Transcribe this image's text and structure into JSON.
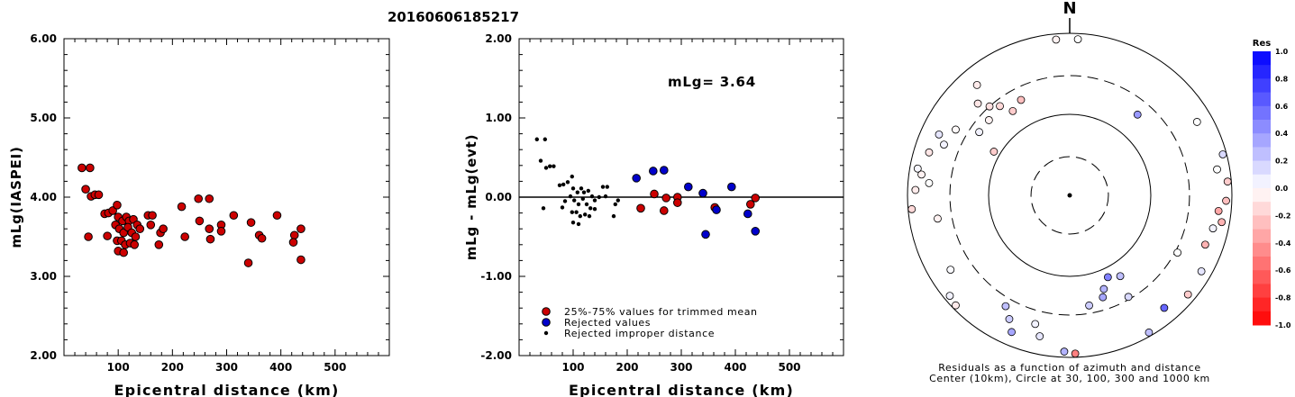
{
  "title": "20160606185217",
  "chart_data": [
    {
      "type": "scatter",
      "xlabel": "Epicentral distance (km)",
      "ylabel": "mLg(IASPEI)",
      "xlim": [
        0,
        600
      ],
      "ylim": [
        2.0,
        6.0
      ],
      "xticks": [
        "100",
        "200",
        "300",
        "400",
        "500"
      ],
      "yticks": [
        "2.00",
        "3.00",
        "4.00",
        "5.00",
        "6.00"
      ],
      "series": [
        {
          "color": "#cc0000",
          "points": [
            [
              33,
              4.37
            ],
            [
              48,
              4.37
            ],
            [
              40,
              4.1
            ],
            [
              50,
              4.01
            ],
            [
              57,
              4.03
            ],
            [
              64,
              4.03
            ],
            [
              45,
              3.5
            ],
            [
              75,
              3.79
            ],
            [
              82,
              3.8
            ],
            [
              90,
              3.83
            ],
            [
              98,
              3.9
            ],
            [
              100,
              3.75
            ],
            [
              108,
              3.7
            ],
            [
              115,
              3.75
            ],
            [
              120,
              3.7
            ],
            [
              128,
              3.72
            ],
            [
              135,
              3.65
            ],
            [
              140,
              3.6
            ],
            [
              155,
              3.77
            ],
            [
              163,
              3.77
            ],
            [
              80,
              3.51
            ],
            [
              95,
              3.65
            ],
            [
              102,
              3.6
            ],
            [
              110,
              3.55
            ],
            [
              118,
              3.62
            ],
            [
              125,
              3.55
            ],
            [
              132,
              3.5
            ],
            [
              98,
              3.45
            ],
            [
              106,
              3.45
            ],
            [
              113,
              3.4
            ],
            [
              122,
              3.42
            ],
            [
              130,
              3.4
            ],
            [
              100,
              3.32
            ],
            [
              110,
              3.3
            ],
            [
              175,
              3.4
            ],
            [
              178,
              3.55
            ],
            [
              183,
              3.6
            ],
            [
              160,
              3.65
            ],
            [
              217,
              3.88
            ],
            [
              248,
              3.98
            ],
            [
              268,
              3.98
            ],
            [
              250,
              3.7
            ],
            [
              268,
              3.6
            ],
            [
              290,
              3.65
            ],
            [
              290,
              3.57
            ],
            [
              313,
              3.77
            ],
            [
              223,
              3.5
            ],
            [
              270,
              3.47
            ],
            [
              345,
              3.68
            ],
            [
              360,
              3.52
            ],
            [
              365,
              3.48
            ],
            [
              393,
              3.77
            ],
            [
              425,
              3.52
            ],
            [
              437,
              3.6
            ],
            [
              423,
              3.43
            ],
            [
              437,
              3.21
            ],
            [
              340,
              3.17
            ]
          ]
        }
      ]
    },
    {
      "type": "scatter",
      "xlabel": "Epicentral distance (km)",
      "ylabel": "mLg - mLg(evt)",
      "xlim": [
        0,
        600
      ],
      "ylim": [
        -2.0,
        2.0
      ],
      "xticks": [
        "100",
        "200",
        "300",
        "400",
        "500"
      ],
      "yticks": [
        "-2.00",
        "-1.00",
        "0.00",
        "1.00",
        "2.00"
      ],
      "annotation": "mLg= 3.64",
      "legend": [
        {
          "label": "25%-75% values for trimmed mean",
          "color": "#cc0000",
          "marker": "circle"
        },
        {
          "label": "Rejected values",
          "color": "#0000cc",
          "marker": "circle"
        },
        {
          "label": "Rejected improper distance",
          "color": "#000000",
          "marker": "dot"
        }
      ],
      "series": [
        {
          "name": "25%-75% values for trimmed mean",
          "color": "#cc0000",
          "points": [
            [
              225,
              -0.14
            ],
            [
              250,
              0.04
            ],
            [
              268,
              -0.17
            ],
            [
              272,
              -0.01
            ],
            [
              293,
              0.0
            ],
            [
              293,
              -0.07
            ],
            [
              362,
              -0.13
            ],
            [
              437,
              -0.01
            ],
            [
              428,
              -0.09
            ]
          ]
        },
        {
          "name": "Rejected values",
          "color": "#0000cc",
          "points": [
            [
              217,
              0.24
            ],
            [
              248,
              0.33
            ],
            [
              268,
              0.34
            ],
            [
              313,
              0.13
            ],
            [
              340,
              0.05
            ],
            [
              345,
              -0.47
            ],
            [
              365,
              -0.16
            ],
            [
              393,
              0.13
            ],
            [
              423,
              -0.21
            ],
            [
              437,
              -0.43
            ]
          ]
        },
        {
          "name": "Rejected improper distance",
          "color": "#000000",
          "points": [
            [
              33,
              0.73
            ],
            [
              48,
              0.73
            ],
            [
              40,
              0.46
            ],
            [
              50,
              0.37
            ],
            [
              57,
              0.39
            ],
            [
              64,
              0.39
            ],
            [
              45,
              -0.14
            ],
            [
              75,
              0.15
            ],
            [
              82,
              0.16
            ],
            [
              90,
              0.19
            ],
            [
              98,
              0.26
            ],
            [
              100,
              0.11
            ],
            [
              108,
              0.06
            ],
            [
              115,
              0.11
            ],
            [
              120,
              0.06
            ],
            [
              128,
              0.08
            ],
            [
              135,
              0.01
            ],
            [
              140,
              -0.04
            ],
            [
              155,
              0.13
            ],
            [
              163,
              0.13
            ],
            [
              80,
              -0.13
            ],
            [
              95,
              0.01
            ],
            [
              102,
              -0.04
            ],
            [
              110,
              -0.09
            ],
            [
              118,
              -0.02
            ],
            [
              125,
              -0.09
            ],
            [
              132,
              -0.14
            ],
            [
              98,
              -0.19
            ],
            [
              106,
              -0.19
            ],
            [
              113,
              -0.24
            ],
            [
              122,
              -0.22
            ],
            [
              130,
              -0.24
            ],
            [
              100,
              -0.32
            ],
            [
              110,
              -0.34
            ],
            [
              175,
              -0.24
            ],
            [
              178,
              -0.09
            ],
            [
              183,
              -0.04
            ],
            [
              160,
              0.01
            ],
            [
              85,
              -0.05
            ],
            [
              140,
              -0.15
            ],
            [
              148,
              0.0
            ]
          ]
        }
      ]
    },
    {
      "type": "scatter",
      "subtype": "polar residual map",
      "north_label": "N",
      "caption_line1": "Residuals as a function of azimuth and distance",
      "caption_line2": "Center (10km), Circle at 30, 100, 300 and 1000 km",
      "colorbar": {
        "title": "Res",
        "range": [
          -1.0,
          1.0
        ],
        "ticks": [
          "1.0",
          "0.8",
          "0.6",
          "0.4",
          "0.2",
          "0.0",
          "-0.2",
          "-0.4",
          "-0.6",
          "-0.8",
          "-1.0"
        ],
        "positive_color": "#0000ff",
        "negative_color": "#ff0000"
      },
      "stations": [
        {
          "azimuth": 355,
          "distance": 850,
          "residual": -0.05
        },
        {
          "azimuth": 3,
          "distance": 850,
          "residual": 0.0
        },
        {
          "azimuth": 320,
          "distance": 600,
          "residual": -0.08
        },
        {
          "azimuth": 315,
          "distance": 400,
          "residual": -0.1
        },
        {
          "azimuth": 318,
          "distance": 300,
          "residual": -0.12
        },
        {
          "azimuth": 322,
          "distance": 250,
          "residual": -0.15
        },
        {
          "azimuth": 313,
          "distance": 230,
          "residual": -0.05
        },
        {
          "azimuth": 326,
          "distance": 180,
          "residual": -0.2
        },
        {
          "azimuth": 333,
          "distance": 210,
          "residual": -0.25
        },
        {
          "azimuth": 305,
          "distance": 230,
          "residual": 0.05
        },
        {
          "azimuth": 300,
          "distance": 420,
          "residual": -0.02
        },
        {
          "azimuth": 295,
          "distance": 600,
          "residual": 0.1
        },
        {
          "azimuth": 292,
          "distance": 470,
          "residual": 0.05
        },
        {
          "azimuth": 287,
          "distance": 650,
          "residual": -0.1
        },
        {
          "azimuth": 280,
          "distance": 800,
          "residual": 0.03
        },
        {
          "azimuth": 278,
          "distance": 700,
          "residual": -0.05
        },
        {
          "azimuth": 275,
          "distance": 550,
          "residual": 0.0
        },
        {
          "azimuth": 272,
          "distance": 800,
          "residual": -0.08
        },
        {
          "azimuth": 265,
          "distance": 900,
          "residual": -0.15
        },
        {
          "azimuth": 260,
          "distance": 450,
          "residual": -0.05
        },
        {
          "azimuth": 238,
          "distance": 540,
          "residual": 0.02
        },
        {
          "azimuth": 230,
          "distance": 850,
          "residual": 0.05
        },
        {
          "azimuth": 226,
          "distance": 900,
          "residual": -0.08
        },
        {
          "azimuth": 210,
          "distance": 380,
          "residual": 0.25
        },
        {
          "azimuth": 206,
          "distance": 500,
          "residual": 0.2
        },
        {
          "azimuth": 203,
          "distance": 680,
          "residual": 0.35
        },
        {
          "azimuth": 195,
          "distance": 440,
          "residual": 0.05
        },
        {
          "azimuth": 192,
          "distance": 600,
          "residual": 0.1
        },
        {
          "azimuth": 182,
          "distance": 850,
          "residual": 0.3
        },
        {
          "azimuth": 178,
          "distance": 900,
          "residual": -0.5
        },
        {
          "azimuth": 160,
          "distance": 170,
          "residual": 0.3
        },
        {
          "azimuth": 155,
          "distance": 130,
          "residual": 0.5
        },
        {
          "azimuth": 148,
          "distance": 150,
          "residual": 0.25
        },
        {
          "azimuth": 170,
          "distance": 240,
          "residual": 0.2
        },
        {
          "azimuth": 162,
          "distance": 210,
          "residual": 0.35
        },
        {
          "azimuth": 150,
          "distance": 280,
          "residual": 0.15
        },
        {
          "azimuth": 140,
          "distance": 650,
          "residual": 0.6
        },
        {
          "azimuth": 150,
          "distance": 900,
          "residual": 0.25
        },
        {
          "azimuth": 118,
          "distance": 320,
          "residual": 0.0
        },
        {
          "azimuth": 100,
          "distance": 800,
          "residual": -0.3
        },
        {
          "azimuth": 92,
          "distance": 850,
          "residual": -0.25
        },
        {
          "azimuth": 85,
          "distance": 900,
          "residual": -0.2
        },
        {
          "azimuth": 80,
          "distance": 700,
          "residual": 0.0
        },
        {
          "azimuth": 96,
          "distance": 700,
          "residual": -0.35
        },
        {
          "azimuth": 103,
          "distance": 650,
          "residual": 0.05
        },
        {
          "azimuth": 110,
          "distance": 600,
          "residual": -0.3
        },
        {
          "azimuth": 75,
          "distance": 900,
          "residual": 0.15
        },
        {
          "azimuth": 60,
          "distance": 650,
          "residual": 0.0
        },
        {
          "azimuth": 40,
          "distance": 200,
          "residual": 0.4
        },
        {
          "azimuth": 300,
          "distance": 120,
          "residual": -0.2
        },
        {
          "azimuth": 120,
          "distance": 750,
          "residual": 0.1
        },
        {
          "azimuth": 130,
          "distance": 800,
          "residual": -0.2
        }
      ]
    }
  ]
}
